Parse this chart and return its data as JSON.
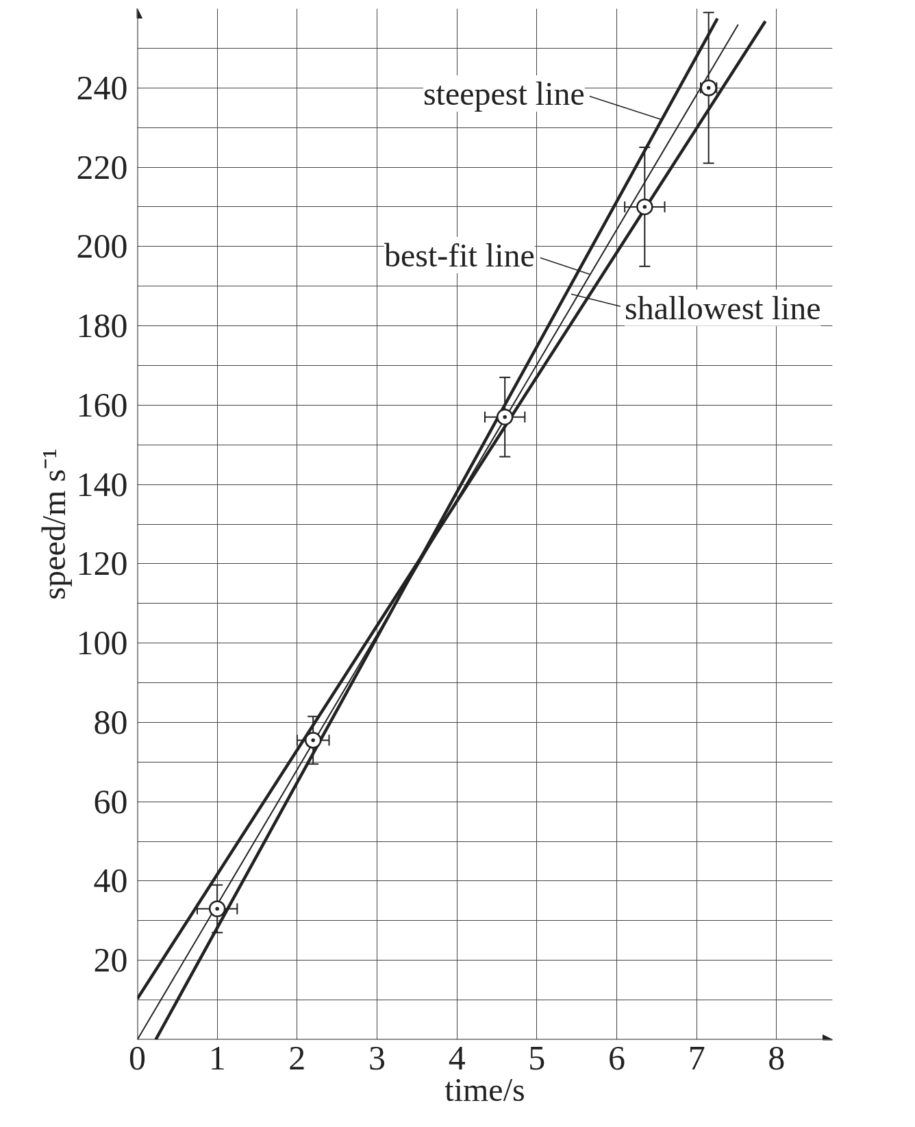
{
  "chart_data": {
    "type": "scatter",
    "xlabel": "time/s",
    "ylabel": "speed/m s⁻¹",
    "xlim": [
      0,
      8.7
    ],
    "ylim": [
      0,
      260
    ],
    "xticks": [
      0,
      1,
      2,
      3,
      4,
      5,
      6,
      7,
      8
    ],
    "yticks": [
      {
        "value": 10,
        "label": null
      },
      20,
      {
        "value": 30,
        "label": null
      },
      40,
      {
        "value": 50,
        "label": null
      },
      60,
      {
        "value": 70,
        "label": null
      },
      80,
      {
        "value": 90,
        "label": null
      },
      100,
      {
        "value": 110,
        "label": null
      },
      120,
      {
        "value": 130,
        "label": null
      },
      140,
      {
        "value": 150,
        "label": null
      },
      160,
      {
        "value": 170,
        "label": null
      },
      180,
      {
        "value": 190,
        "label": null
      },
      200,
      {
        "value": 210,
        "label": null
      },
      220,
      {
        "value": 230,
        "label": null
      },
      240,
      {
        "value": 250,
        "label": null
      }
    ],
    "grid": true,
    "annotations": [
      {
        "text": "steepest line",
        "x": 6.56,
        "y": 232
      },
      {
        "text": "best-fit line",
        "x": 5.66,
        "y": 193
      },
      {
        "text": "shallowest line",
        "x": 5.43,
        "y": 188
      }
    ],
    "series": [
      {
        "marker": "circle",
        "color": "#222222",
        "x": [
          1.0,
          2.2,
          4.6,
          6.35,
          7.15
        ],
        "values": [
          33,
          75.5,
          157,
          210,
          240
        ],
        "errors": [
          6,
          6,
          10,
          15,
          19
        ],
        "xerrors": [
          0.25,
          0.2,
          0.25,
          0.25,
          0.1
        ]
      },
      {
        "type": "line",
        "color": "#222222",
        "x": [
          0.23,
          7.26
        ],
        "values": [
          0,
          257.5
        ]
      },
      {
        "type": "line",
        "color": "#222222",
        "x": [
          0,
          7.52
        ],
        "values": [
          0,
          256
        ]
      },
      {
        "type": "line",
        "color": "#222222",
        "x": [
          0,
          7.86
        ],
        "values": [
          10.3,
          256.8
        ]
      }
    ]
  }
}
